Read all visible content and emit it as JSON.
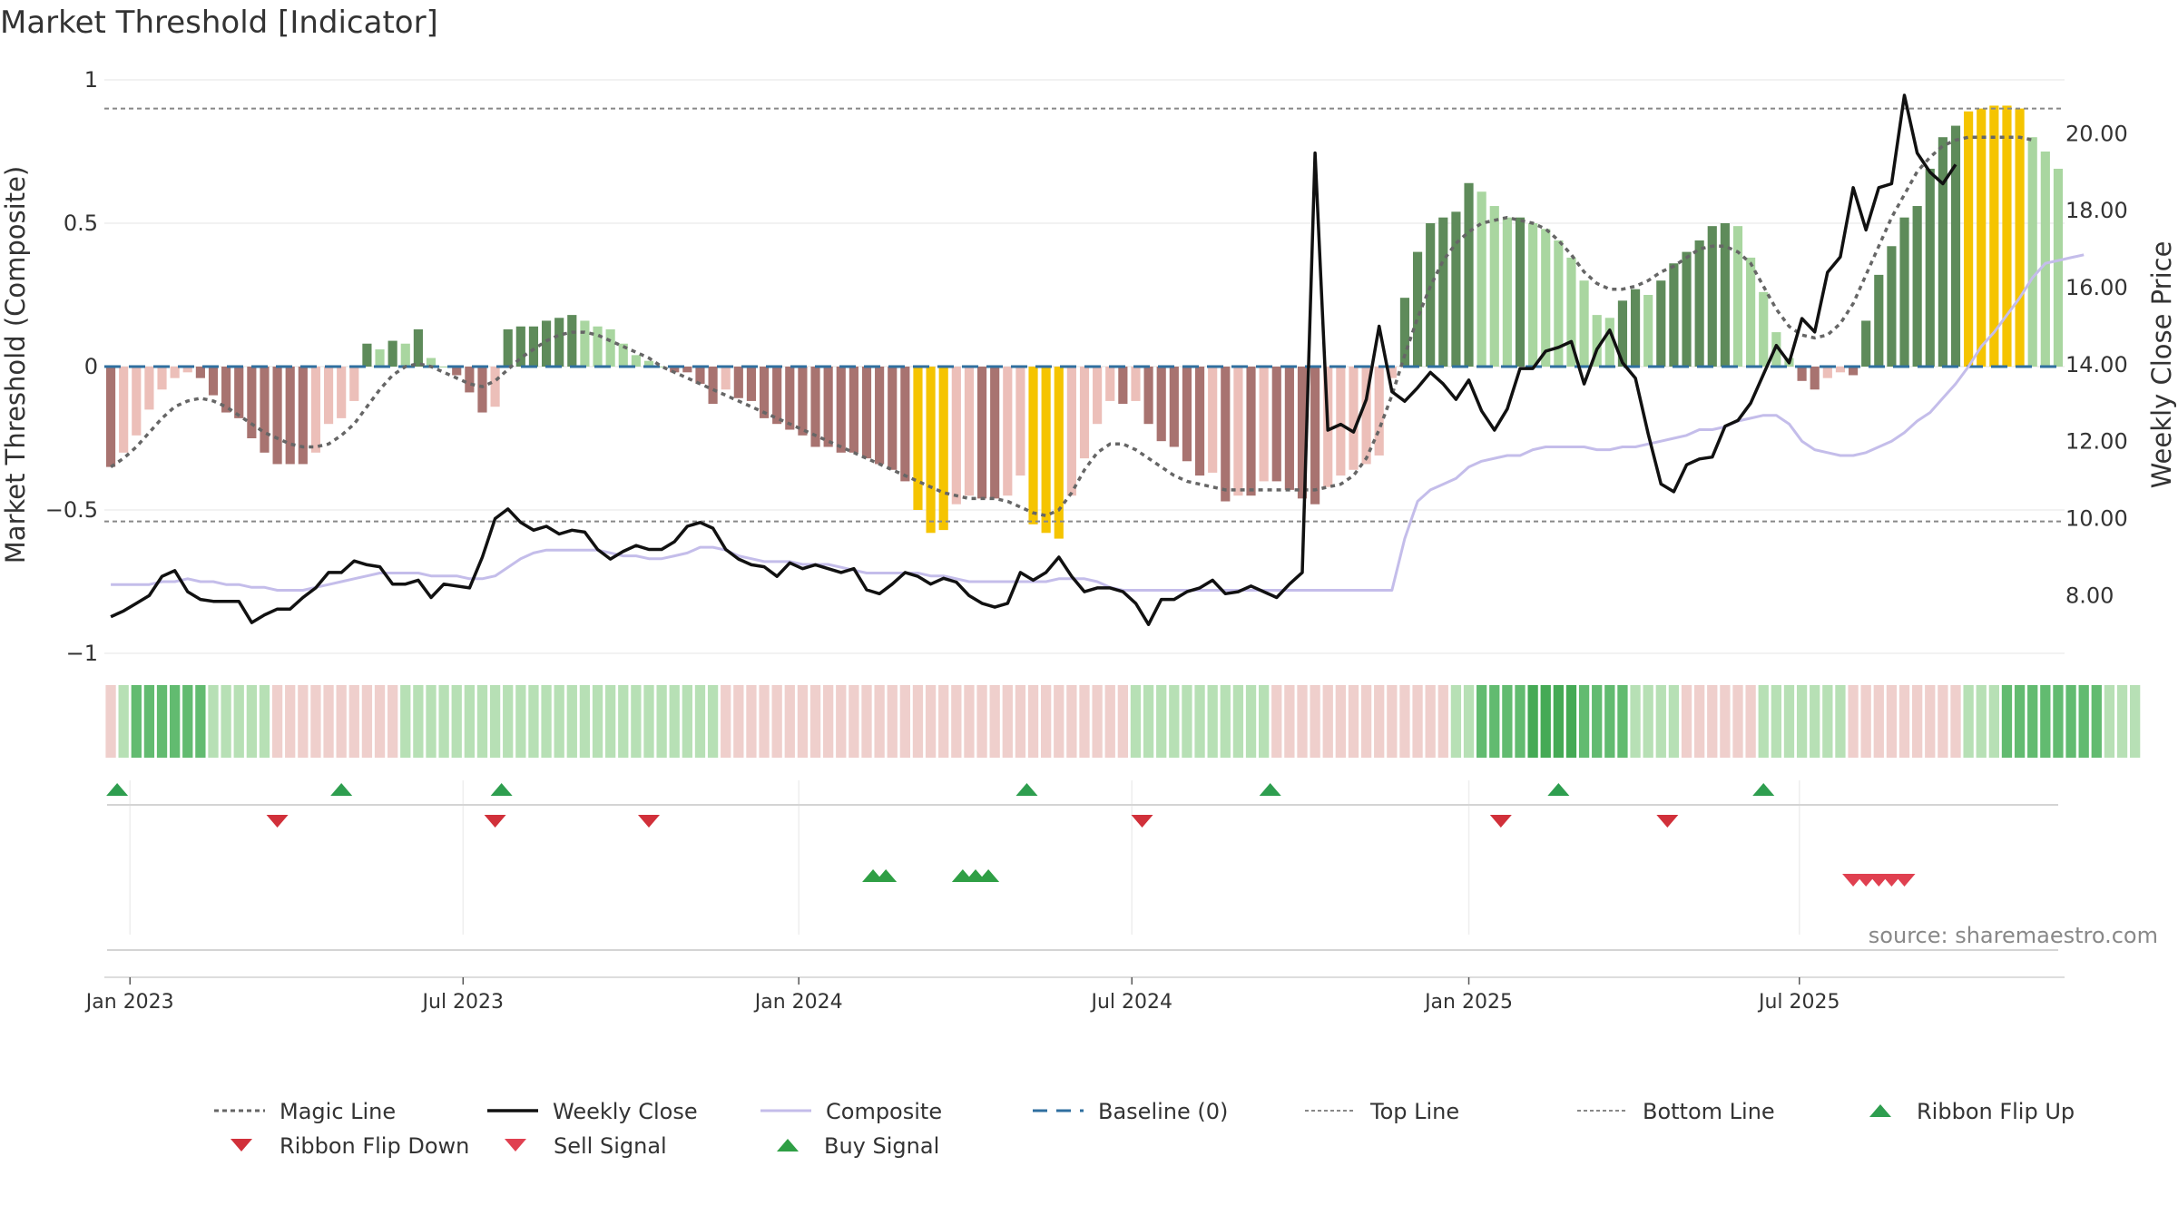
{
  "chart_data": {
    "type": "bar",
    "title": "Market Threshold [Indicator]",
    "ylabel": "Market Threshold (Composite)",
    "y2label": "Weekly Close Price",
    "ylim": [
      -1,
      1
    ],
    "y2lim": [
      6.5,
      21.4
    ],
    "yticks": [
      {
        "value": 1,
        "label": "1"
      },
      {
        "value": 0.5,
        "label": "0.5"
      },
      {
        "value": 0,
        "label": "0"
      },
      {
        "value": -0.5,
        "label": "−0.5"
      },
      {
        "value": -1,
        "label": "−1"
      }
    ],
    "y2ticks": [
      {
        "value": 20,
        "label": "20.00"
      },
      {
        "value": 18,
        "label": "18.00"
      },
      {
        "value": 16,
        "label": "16.00"
      },
      {
        "value": 14,
        "label": "14.00"
      },
      {
        "value": 12,
        "label": "12.00"
      },
      {
        "value": 10,
        "label": "10.00"
      },
      {
        "value": 8,
        "label": "8.00"
      }
    ],
    "xticks": [
      {
        "week": 1.5,
        "label": "Jan 2023"
      },
      {
        "week": 27.5,
        "label": "Jul 2023"
      },
      {
        "week": 53.7,
        "label": "Jan 2024"
      },
      {
        "week": 79.7,
        "label": "Jul 2024"
      },
      {
        "week": 106,
        "label": "Jan 2025"
      },
      {
        "week": 131.8,
        "label": "Jul 2025"
      }
    ],
    "top_line": 0.9,
    "bottom_line": -0.54,
    "baseline": 0,
    "composite_values": [
      -0.35,
      -0.3,
      -0.24,
      -0.15,
      -0.08,
      -0.04,
      -0.02,
      -0.04,
      -0.1,
      -0.16,
      -0.18,
      -0.25,
      -0.3,
      -0.34,
      -0.34,
      -0.34,
      -0.3,
      -0.2,
      -0.18,
      -0.12,
      0.08,
      0.06,
      0.09,
      0.08,
      0.13,
      0.03,
      0.0,
      -0.03,
      -0.09,
      -0.16,
      -0.14,
      0.13,
      0.14,
      0.14,
      0.16,
      0.17,
      0.18,
      0.16,
      0.14,
      0.13,
      0.08,
      0.04,
      0.02,
      0.0,
      -0.02,
      -0.02,
      -0.06,
      -0.13,
      -0.08,
      -0.11,
      -0.12,
      -0.18,
      -0.2,
      -0.22,
      -0.24,
      -0.28,
      -0.28,
      -0.3,
      -0.3,
      -0.32,
      -0.34,
      -0.36,
      -0.4,
      -0.5,
      -0.58,
      -0.57,
      -0.48,
      -0.45,
      -0.46,
      -0.46,
      -0.45,
      -0.38,
      -0.55,
      -0.58,
      -0.6,
      -0.45,
      -0.32,
      -0.2,
      -0.12,
      -0.13,
      -0.12,
      -0.2,
      -0.26,
      -0.28,
      -0.33,
      -0.38,
      -0.37,
      -0.47,
      -0.45,
      -0.45,
      -0.4,
      -0.4,
      -0.43,
      -0.46,
      -0.48,
      -0.42,
      -0.38,
      -0.36,
      -0.34,
      -0.31,
      -0.04,
      0.24,
      0.4,
      0.5,
      0.52,
      0.54,
      0.64,
      0.61,
      0.56,
      0.52,
      0.52,
      0.5,
      0.48,
      0.44,
      0.38,
      0.3,
      0.18,
      0.17,
      0.23,
      0.27,
      0.25,
      0.3,
      0.36,
      0.4,
      0.44,
      0.49,
      0.5,
      0.49,
      0.38,
      0.26,
      0.12,
      0.03,
      -0.05,
      -0.08,
      -0.04,
      -0.02,
      -0.03,
      0.16,
      0.32,
      0.42,
      0.52,
      0.56,
      0.69,
      0.8,
      0.84,
      0.89,
      0.9,
      0.91,
      0.91,
      0.9,
      0.8,
      0.75,
      0.69
    ],
    "bar_colors": {
      "strong_up": "#5e8b5a",
      "weak_up": "#a9d6a0",
      "strong_down": "#a87370",
      "weak_down": "#ecbfb9",
      "extreme": "#f5c400"
    },
    "magic_line_values": [
      -0.35,
      -0.32,
      -0.28,
      -0.23,
      -0.18,
      -0.14,
      -0.12,
      -0.11,
      -0.12,
      -0.14,
      -0.17,
      -0.2,
      -0.23,
      -0.25,
      -0.27,
      -0.28,
      -0.28,
      -0.27,
      -0.24,
      -0.2,
      -0.14,
      -0.08,
      -0.03,
      0.0,
      0.01,
      0.0,
      -0.02,
      -0.04,
      -0.06,
      -0.07,
      -0.05,
      -0.01,
      0.03,
      0.06,
      0.09,
      0.11,
      0.12,
      0.12,
      0.11,
      0.09,
      0.07,
      0.05,
      0.03,
      0.0,
      -0.02,
      -0.04,
      -0.06,
      -0.08,
      -0.1,
      -0.12,
      -0.14,
      -0.16,
      -0.18,
      -0.2,
      -0.22,
      -0.24,
      -0.26,
      -0.28,
      -0.3,
      -0.32,
      -0.34,
      -0.36,
      -0.38,
      -0.4,
      -0.42,
      -0.44,
      -0.45,
      -0.46,
      -0.46,
      -0.46,
      -0.47,
      -0.49,
      -0.51,
      -0.52,
      -0.5,
      -0.44,
      -0.36,
      -0.3,
      -0.27,
      -0.27,
      -0.29,
      -0.32,
      -0.35,
      -0.38,
      -0.4,
      -0.41,
      -0.42,
      -0.43,
      -0.43,
      -0.43,
      -0.43,
      -0.43,
      -0.43,
      -0.43,
      -0.43,
      -0.42,
      -0.41,
      -0.38,
      -0.32,
      -0.22,
      -0.1,
      0.04,
      0.17,
      0.28,
      0.37,
      0.43,
      0.47,
      0.5,
      0.51,
      0.52,
      0.51,
      0.5,
      0.48,
      0.44,
      0.39,
      0.33,
      0.29,
      0.27,
      0.27,
      0.28,
      0.3,
      0.33,
      0.35,
      0.38,
      0.41,
      0.42,
      0.42,
      0.4,
      0.36,
      0.28,
      0.2,
      0.14,
      0.11,
      0.1,
      0.11,
      0.15,
      0.22,
      0.32,
      0.42,
      0.52,
      0.6,
      0.68,
      0.73,
      0.77,
      0.79,
      0.8,
      0.8,
      0.8,
      0.8,
      0.8,
      0.79
    ],
    "composite_line_values": [
      -0.76,
      -0.76,
      -0.76,
      -0.76,
      -0.75,
      -0.75,
      -0.74,
      -0.75,
      -0.75,
      -0.76,
      -0.76,
      -0.77,
      -0.77,
      -0.78,
      -0.78,
      -0.78,
      -0.77,
      -0.76,
      -0.75,
      -0.74,
      -0.73,
      -0.72,
      -0.72,
      -0.72,
      -0.72,
      -0.73,
      -0.73,
      -0.73,
      -0.74,
      -0.74,
      -0.73,
      -0.7,
      -0.67,
      -0.65,
      -0.64,
      -0.64,
      -0.64,
      -0.64,
      -0.64,
      -0.65,
      -0.66,
      -0.66,
      -0.67,
      -0.67,
      -0.66,
      -0.65,
      -0.63,
      -0.63,
      -0.64,
      -0.66,
      -0.67,
      -0.68,
      -0.68,
      -0.68,
      -0.69,
      -0.69,
      -0.69,
      -0.7,
      -0.71,
      -0.72,
      -0.72,
      -0.72,
      -0.72,
      -0.72,
      -0.73,
      -0.73,
      -0.74,
      -0.75,
      -0.75,
      -0.75,
      -0.75,
      -0.75,
      -0.75,
      -0.75,
      -0.74,
      -0.74,
      -0.74,
      -0.75,
      -0.77,
      -0.78,
      -0.78,
      -0.78,
      -0.78,
      -0.78,
      -0.78,
      -0.78,
      -0.78,
      -0.78,
      -0.78,
      -0.78,
      -0.78,
      -0.78,
      -0.78,
      -0.78,
      -0.78,
      -0.78,
      -0.78,
      -0.78,
      -0.78,
      -0.78,
      -0.78,
      -0.6,
      -0.47,
      -0.43,
      -0.41,
      -0.39,
      -0.35,
      -0.33,
      -0.32,
      -0.31,
      -0.31,
      -0.29,
      -0.28,
      -0.28,
      -0.28,
      -0.28,
      -0.29,
      -0.29,
      -0.28,
      -0.28,
      -0.27,
      -0.26,
      -0.25,
      -0.24,
      -0.22,
      -0.22,
      -0.21,
      -0.19,
      -0.18,
      -0.17,
      -0.17,
      -0.2,
      -0.26,
      -0.29,
      -0.3,
      -0.31,
      -0.31,
      -0.3,
      -0.28,
      -0.26,
      -0.23,
      -0.19,
      -0.16,
      -0.11,
      -0.06,
      0.0,
      0.07,
      0.12,
      0.18,
      0.24,
      0.31,
      0.36,
      0.37,
      0.38,
      0.39
    ],
    "weekly_close_values": [
      7.45,
      7.6,
      7.8,
      8.0,
      8.5,
      8.65,
      8.1,
      7.9,
      7.85,
      7.85,
      7.85,
      7.3,
      7.5,
      7.65,
      7.65,
      7.95,
      8.2,
      8.6,
      8.6,
      8.9,
      8.8,
      8.75,
      8.3,
      8.3,
      8.4,
      7.95,
      8.3,
      8.25,
      8.2,
      9.0,
      10.0,
      10.25,
      9.9,
      9.7,
      9.8,
      9.6,
      9.7,
      9.65,
      9.2,
      8.95,
      9.15,
      9.3,
      9.2,
      9.2,
      9.4,
      9.8,
      9.9,
      9.75,
      9.2,
      8.95,
      8.8,
      8.75,
      8.5,
      8.85,
      8.7,
      8.8,
      8.7,
      8.6,
      8.7,
      8.15,
      8.05,
      8.3,
      8.6,
      8.5,
      8.3,
      8.45,
      8.35,
      8.0,
      7.8,
      7.7,
      7.8,
      8.6,
      8.4,
      8.6,
      9.0,
      8.5,
      8.1,
      8.2,
      8.2,
      8.1,
      7.8,
      7.25,
      7.9,
      7.9,
      8.1,
      8.2,
      8.4,
      8.05,
      8.1,
      8.25,
      8.1,
      7.95,
      8.3,
      8.6,
      19.5,
      12.3,
      12.45,
      12.25,
      13.1,
      15.0,
      13.3,
      13.05,
      13.4,
      13.8,
      13.5,
      13.1,
      13.6,
      12.8,
      12.3,
      12.85,
      13.9,
      13.9,
      14.35,
      14.45,
      14.6,
      13.5,
      14.4,
      14.9,
      14.05,
      13.65,
      12.2,
      10.9,
      10.7,
      11.4,
      11.55,
      11.6,
      12.4,
      12.55,
      13.0,
      13.75,
      14.5,
      14.05,
      15.2,
      14.85,
      16.4,
      16.8,
      18.6,
      17.5,
      18.6,
      18.7,
      21.0,
      19.5,
      19.0,
      18.7,
      19.2
    ],
    "ribbon_levels": [
      -1,
      1,
      2,
      2,
      2,
      2,
      2,
      2,
      1,
      1,
      1,
      1,
      1,
      -1,
      -1,
      -1,
      -1,
      -1,
      -1,
      -1,
      -1,
      -1,
      -1,
      1,
      1,
      1,
      1,
      1,
      1,
      1,
      1,
      1,
      1,
      1,
      1,
      1,
      1,
      1,
      1,
      1,
      1,
      1,
      1,
      1,
      1,
      1,
      1,
      1,
      -1,
      -1,
      -1,
      -1,
      -1,
      -1,
      -1,
      -1,
      -1,
      -1,
      -1,
      -1,
      -1,
      -1,
      -1,
      -1,
      -1,
      -1,
      -1,
      -1,
      -1,
      -1,
      -1,
      -1,
      -1,
      -1,
      -1,
      -1,
      -1,
      -1,
      -1,
      -1,
      1,
      1,
      1,
      1,
      1,
      1,
      1,
      1,
      1,
      1,
      1,
      -1,
      -1,
      -1,
      -1,
      -1,
      -1,
      -1,
      -1,
      -1,
      -1,
      -1,
      -1,
      -1,
      -1,
      1,
      1,
      2,
      2,
      2,
      2,
      3,
      3,
      3,
      3,
      2,
      2,
      2,
      2,
      1,
      1,
      1,
      1,
      -1,
      -1,
      -1,
      -1,
      -1,
      -1,
      1,
      1,
      1,
      1,
      1,
      1,
      1,
      -1,
      -1,
      -1,
      -1,
      -1,
      -1,
      -1,
      -1,
      -1,
      1,
      1,
      1,
      2,
      2,
      2,
      2,
      2,
      2,
      2,
      2,
      1,
      1,
      1
    ],
    "ribbon_colors": {
      "up_1": "#b7e0b5",
      "up_2": "#62bb70",
      "up_3": "#45aa55",
      "down_1": "#efcfcc",
      "down_2": "#dca5a2"
    },
    "ribbon_flip_up_weeks": [
      0.5,
      18,
      30.5,
      71.5,
      90.5,
      113,
      129
    ],
    "ribbon_flip_down_weeks": [
      13,
      30,
      42,
      80.5,
      108.5,
      121.5
    ],
    "buy_signal_weeks": [
      59.5,
      60.5,
      66.5,
      67.5,
      68.5
    ],
    "sell_signal_weeks": [
      136,
      137,
      138,
      139,
      140
    ],
    "legend": [
      {
        "key": "magic",
        "label": "Magic Line"
      },
      {
        "key": "close",
        "label": "Weekly Close"
      },
      {
        "key": "composite",
        "label": "Composite"
      },
      {
        "key": "baseline",
        "label": "Baseline (0)"
      },
      {
        "key": "top",
        "label": "Top Line"
      },
      {
        "key": "bottom",
        "label": "Bottom Line"
      },
      {
        "key": "flipup",
        "label": "Ribbon Flip Up"
      },
      {
        "key": "flipdown",
        "label": "Ribbon Flip Down"
      },
      {
        "key": "sell",
        "label": "Sell Signal"
      },
      {
        "key": "buy",
        "label": "Buy Signal"
      }
    ],
    "source_text": "source: sharemaestro.com",
    "colors": {
      "magic_line": "#666666",
      "weekly_close": "#111111",
      "composite_line": "#c4bdea",
      "baseline": "#2f6f9f",
      "top_bottom": "#888888",
      "flip_up": "#2e9e4f",
      "flip_down": "#d1303a",
      "sell": "#e04050",
      "buy": "#2f9f45"
    }
  }
}
